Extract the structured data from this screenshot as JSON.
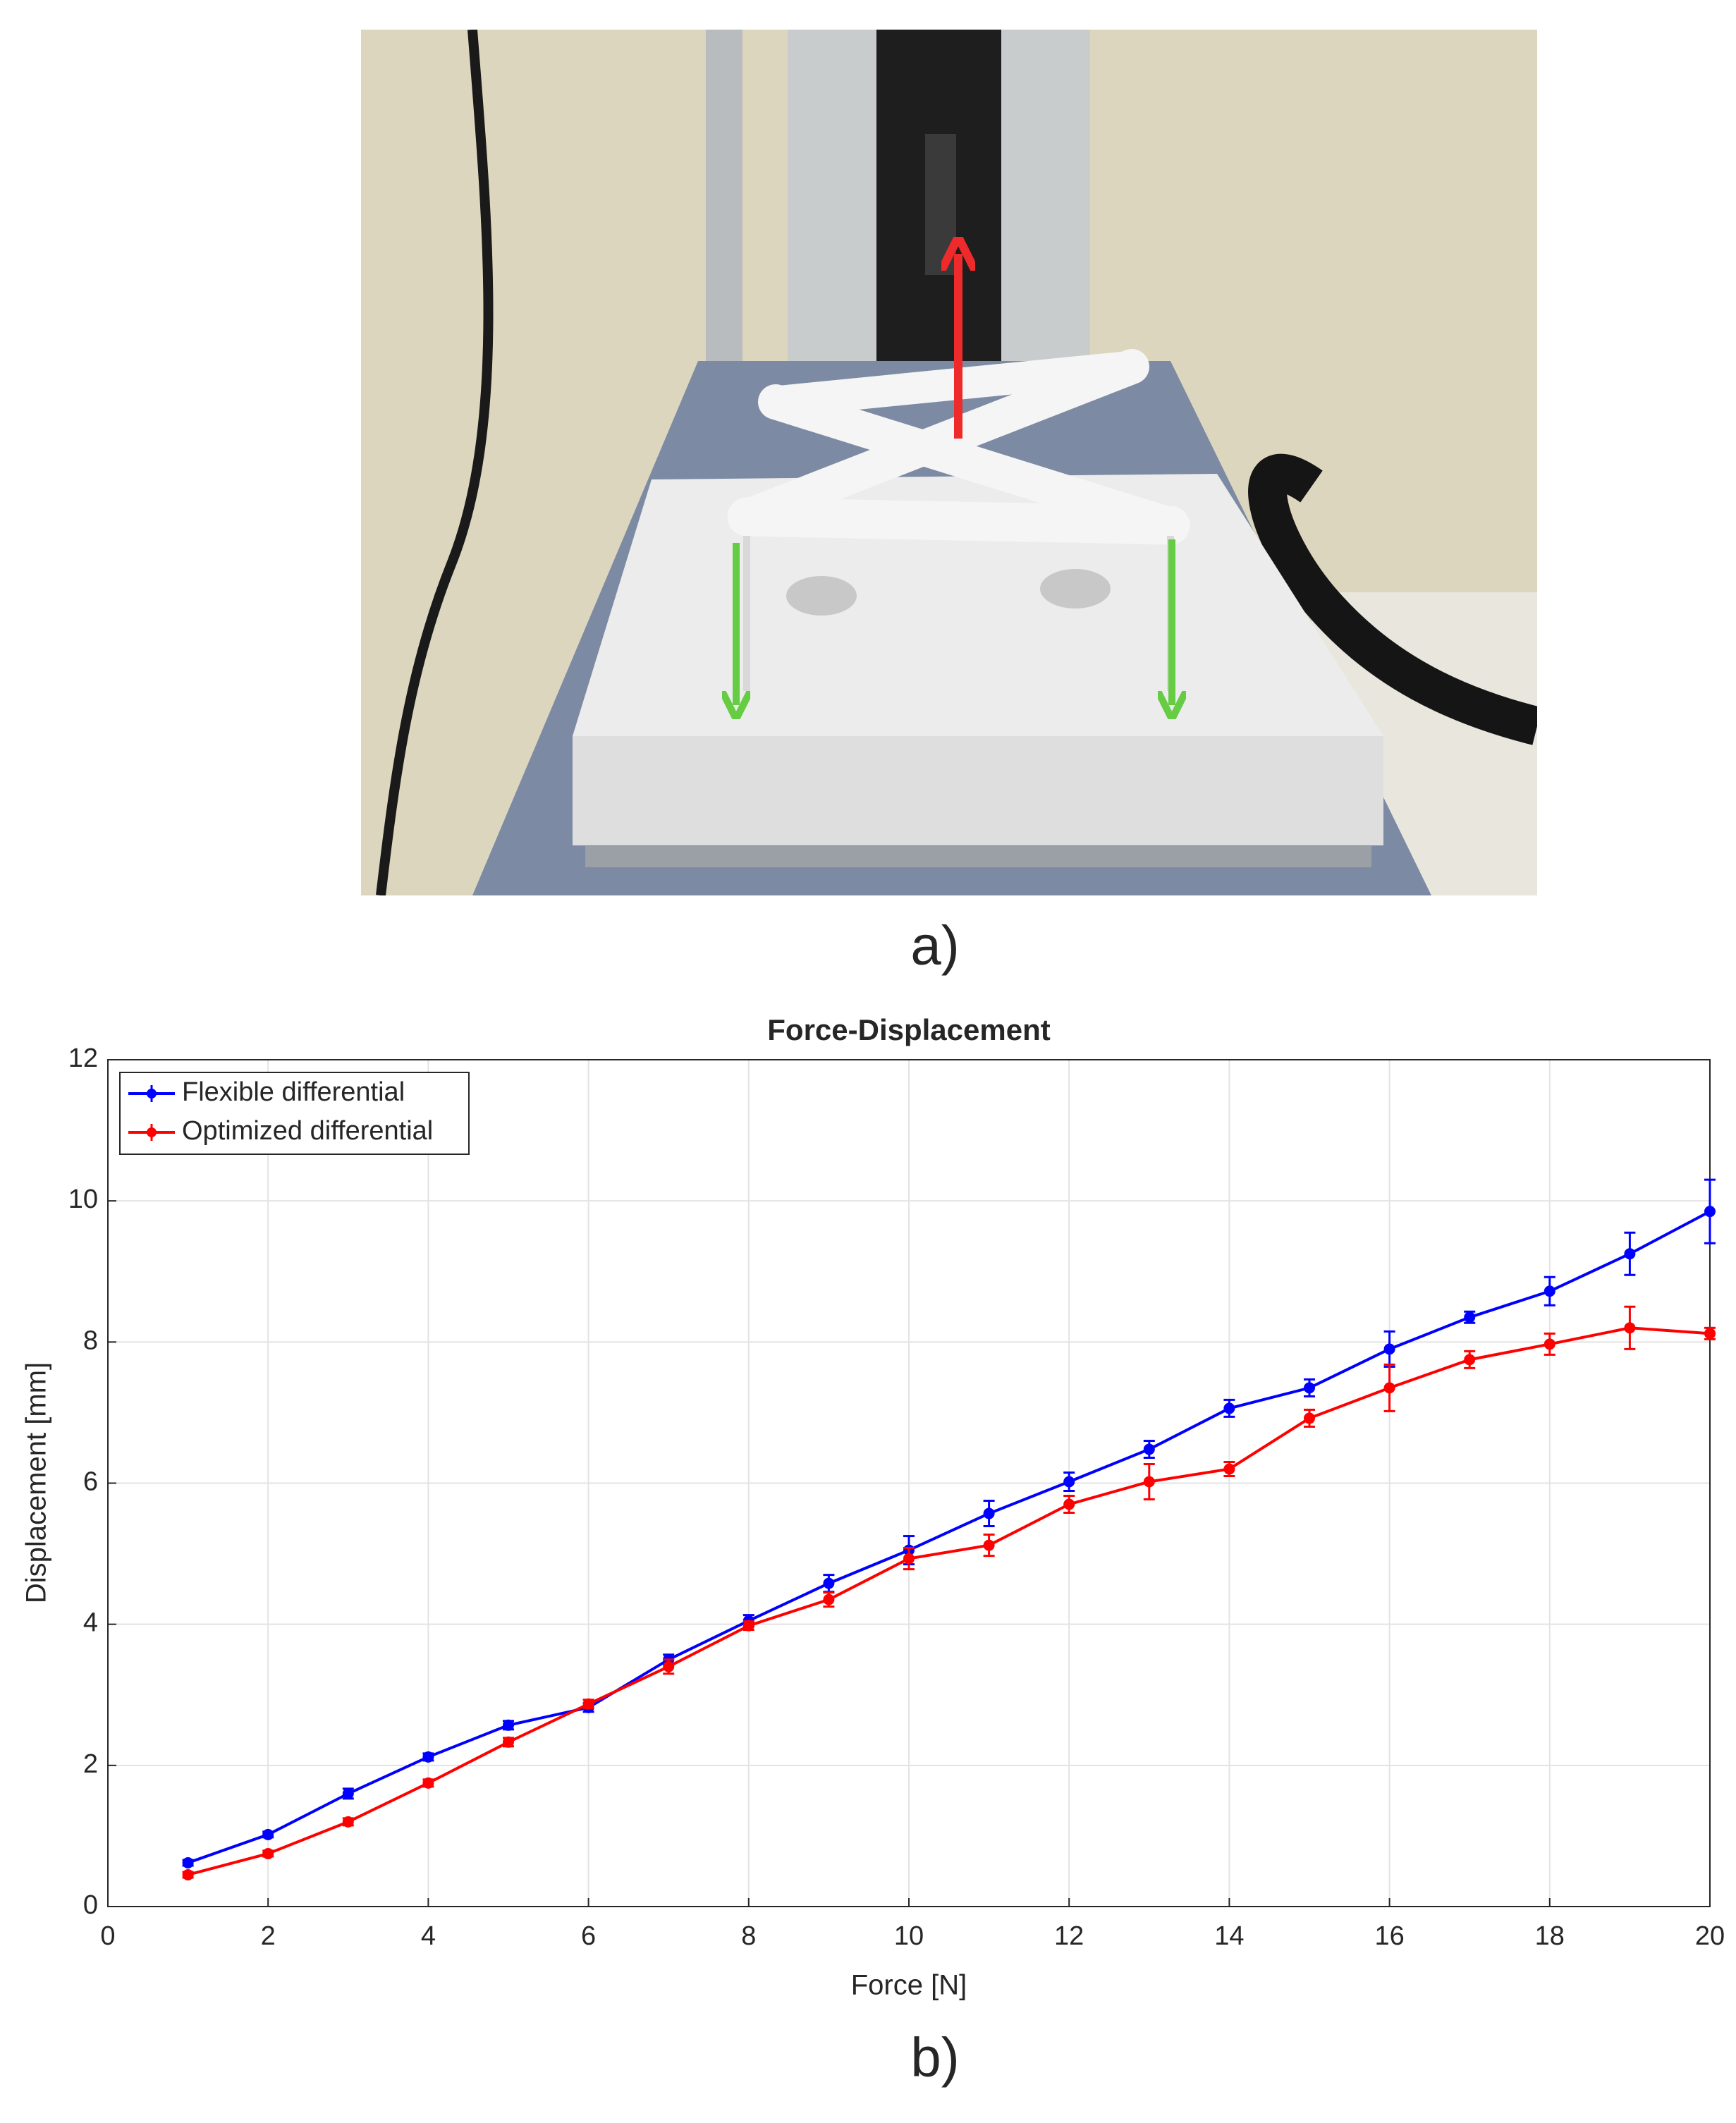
{
  "captions": [
    "a)",
    "b)"
  ],
  "chart_data": {
    "type": "line",
    "title": "Force-Displacement",
    "x_label": "Force [N]",
    "y_label": "Displacement [mm]",
    "x": [
      1,
      2,
      3,
      4,
      5,
      6,
      7,
      8,
      9,
      10,
      11,
      12,
      13,
      14,
      15,
      16,
      17,
      18,
      19,
      20
    ],
    "series": [
      {
        "name": "Flexible differential",
        "color": "#0000ff",
        "values": [
          0.62,
          1.02,
          1.6,
          2.12,
          2.57,
          2.82,
          3.5,
          4.05,
          4.58,
          5.05,
          5.57,
          6.02,
          6.48,
          7.06,
          7.35,
          7.9,
          8.35,
          8.72,
          9.25,
          9.85
        ],
        "errors": [
          0.04,
          0.04,
          0.07,
          0.05,
          0.06,
          0.06,
          0.07,
          0.08,
          0.12,
          0.2,
          0.18,
          0.13,
          0.12,
          0.12,
          0.12,
          0.25,
          0.08,
          0.2,
          0.3,
          0.45
        ]
      },
      {
        "name": "Optimized differential",
        "color": "#ff0000",
        "values": [
          0.45,
          0.75,
          1.2,
          1.75,
          2.33,
          2.87,
          3.4,
          3.98,
          4.35,
          4.93,
          5.12,
          5.7,
          6.02,
          6.2,
          6.92,
          7.35,
          7.75,
          7.97,
          8.2,
          8.12
        ],
        "errors": [
          0.04,
          0.04,
          0.05,
          0.05,
          0.06,
          0.06,
          0.1,
          0.06,
          0.1,
          0.15,
          0.15,
          0.12,
          0.25,
          0.1,
          0.12,
          0.33,
          0.12,
          0.15,
          0.3,
          0.08
        ]
      }
    ],
    "xlim": [
      0,
      20
    ],
    "ylim": [
      0,
      12
    ],
    "xticks": [
      0,
      2,
      4,
      6,
      8,
      10,
      12,
      14,
      16,
      18,
      20
    ],
    "yticks": [
      0,
      2,
      4,
      6,
      8,
      10,
      12
    ],
    "grid": true,
    "legend": "upper-left"
  }
}
